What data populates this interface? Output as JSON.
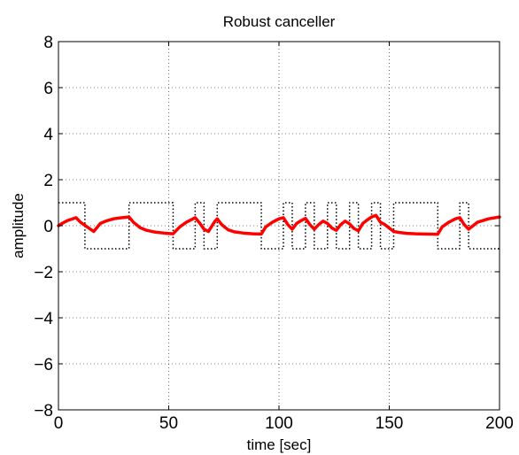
{
  "chart_data": {
    "type": "line",
    "title": "Robust canceller",
    "xlabel": "time [sec]",
    "ylabel": "amplitude",
    "xlim": [
      0,
      200
    ],
    "ylim": [
      -8,
      8
    ],
    "x_ticks": [
      0,
      50,
      100,
      150,
      200
    ],
    "y_ticks": [
      -8,
      -6,
      -4,
      -2,
      0,
      2,
      4,
      6,
      8
    ],
    "x_tick_labels": [
      "0",
      "50",
      "100",
      "150",
      "200"
    ],
    "y_tick_labels": [
      "−8",
      "−6",
      "−4",
      "−2",
      "0",
      "2",
      "4",
      "6",
      "8"
    ],
    "grid": true,
    "legend": "none",
    "series": [
      {
        "style": "dotted",
        "color": "#000000",
        "x": [
          0,
          12,
          12,
          32,
          32,
          52,
          52,
          62,
          62,
          66,
          66,
          72,
          72,
          92,
          92,
          102,
          102,
          106,
          106,
          112,
          112,
          116,
          116,
          122,
          122,
          126,
          126,
          132,
          132,
          136,
          136,
          142,
          142,
          146,
          146,
          152,
          152,
          172,
          172,
          182,
          182,
          186,
          186,
          200
        ],
        "y": [
          1,
          1,
          -1,
          -1,
          1,
          1,
          -1,
          -1,
          1,
          1,
          -1,
          -1,
          1,
          1,
          -1,
          -1,
          1,
          1,
          -1,
          -1,
          1,
          1,
          -1,
          -1,
          1,
          1,
          -1,
          -1,
          1,
          1,
          -1,
          -1,
          1,
          1,
          -1,
          -1,
          1,
          1,
          -1,
          -1,
          1,
          1,
          -1,
          -1
        ]
      },
      {
        "style": "solid",
        "color": "#ff0000",
        "x": [
          0,
          2,
          4,
          8,
          10,
          13,
          16,
          19,
          22,
          25,
          28,
          32,
          34,
          37,
          40,
          44,
          48,
          52,
          55,
          58,
          61,
          62,
          64,
          66,
          68,
          71,
          72,
          74,
          77,
          80,
          84,
          88,
          92,
          94,
          97,
          100,
          102,
          104,
          106,
          108,
          110,
          112,
          114,
          116,
          118,
          120,
          122,
          124,
          126,
          128,
          130,
          132,
          134,
          136,
          138,
          140,
          142,
          144,
          146,
          148,
          150,
          152,
          155,
          158,
          162,
          166,
          172,
          174,
          177,
          180,
          182,
          184,
          186,
          190,
          195,
          200
        ],
        "y": [
          0,
          0.12,
          0.22,
          0.35,
          0.15,
          -0.05,
          -0.25,
          0.1,
          0.22,
          0.3,
          0.34,
          0.38,
          0.15,
          -0.08,
          -0.2,
          -0.28,
          -0.32,
          -0.35,
          -0.05,
          0.15,
          0.3,
          0.35,
          0.12,
          -0.15,
          -0.25,
          0.2,
          0.3,
          0.05,
          -0.18,
          -0.27,
          -0.32,
          -0.35,
          -0.36,
          -0.05,
          0.15,
          0.3,
          0.35,
          0.05,
          -0.15,
          0.1,
          0.22,
          0.32,
          0.05,
          -0.15,
          0.05,
          0.2,
          0.1,
          -0.1,
          -0.2,
          0.05,
          0.2,
          0.08,
          -0.12,
          -0.22,
          0.1,
          0.25,
          0.38,
          0.45,
          0.15,
          0.05,
          -0.1,
          -0.25,
          -0.3,
          -0.33,
          -0.35,
          -0.36,
          -0.37,
          -0.05,
          0.15,
          0.3,
          0.35,
          0.05,
          -0.15,
          0.15,
          0.3,
          0.38
        ]
      }
    ]
  }
}
